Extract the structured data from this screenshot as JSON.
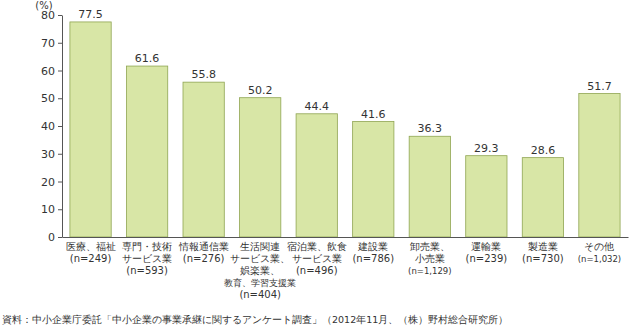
{
  "chart_data": {
    "type": "bar",
    "y_label": "(%)",
    "categories": [
      "医療、福祉\n(n=249)",
      "専門・技術\nサービス業\n(n=593)",
      "情報通信業\n(n=276)",
      "生活関連\nサービス業、\n娯楽業、\n教育、学習支援業\n(n=404)",
      "宿泊業、飲食\nサービス業\n(n=496)",
      "建設業\n(n=786)",
      "卸売業、\n小売業\n(n=1,129)",
      "運輸業\n(n=239)",
      "製造業\n(n=730)",
      "その他\n(n=1,032)"
    ],
    "values": [
      77.5,
      61.6,
      55.8,
      50.2,
      44.4,
      41.6,
      36.3,
      29.3,
      28.6,
      51.7
    ],
    "color": "#d8e6a6",
    "ylim": [
      0,
      80
    ],
    "yticks": [
      0,
      10,
      20,
      30,
      40,
      50,
      60,
      70,
      80
    ],
    "grid": false,
    "data_labels": true,
    "source": "資料：中小企業庁委託「中小企業の事業承継に関するアンケート調査」（2012年11月、（株）野村総合研究所）"
  }
}
